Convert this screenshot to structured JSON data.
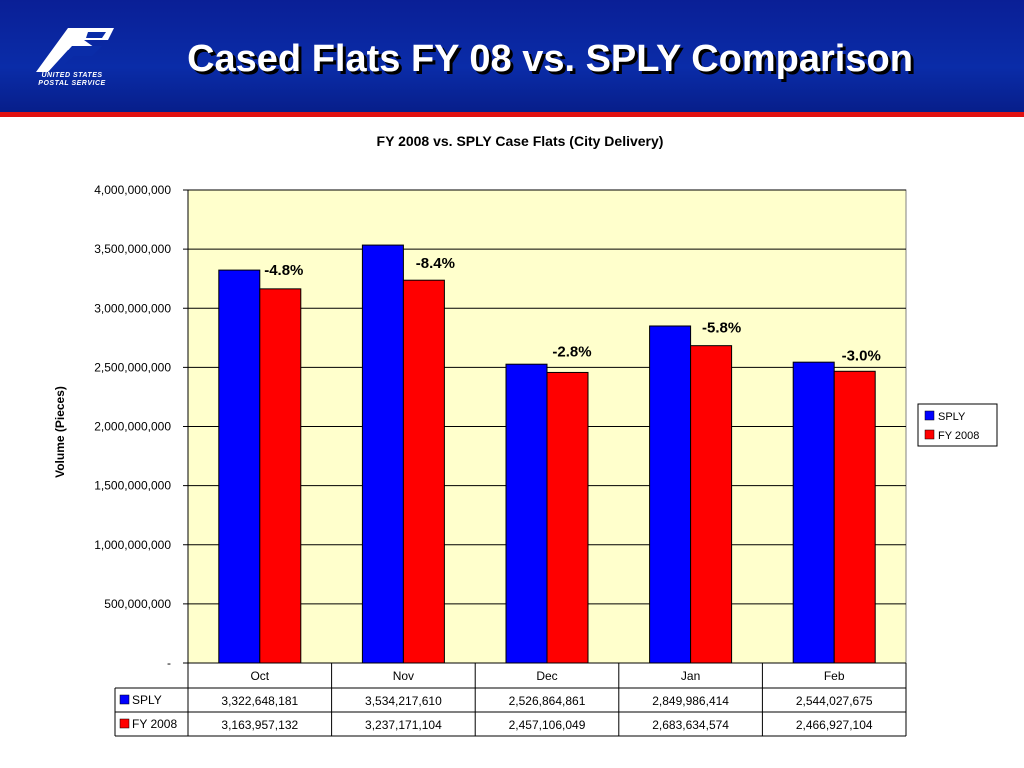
{
  "header": {
    "title": "Cased Flats FY 08 vs. SPLY Comparison",
    "logo_line1": "UNITED STATES",
    "logo_line2": "POSTAL SERVICE"
  },
  "colors": {
    "banner": "#0a2ca8",
    "accent_line": "#e01010",
    "plot_bg": "#ffffcc",
    "sply": "#0000ff",
    "fy2008": "#ff0000"
  },
  "chart_data": {
    "type": "bar",
    "title": "FY 2008 vs. SPLY Case Flats (City Delivery)",
    "ylabel": "Volume (Pieces)",
    "xlabel": "",
    "ylim": [
      0,
      4000000000
    ],
    "yticks": [
      0,
      500000000,
      1000000000,
      1500000000,
      2000000000,
      2500000000,
      3000000000,
      3500000000,
      4000000000
    ],
    "ytick_labels": [
      "-",
      "500,000,000",
      "1,000,000,000",
      "1,500,000,000",
      "2,000,000,000",
      "2,500,000,000",
      "3,000,000,000",
      "3,500,000,000",
      "4,000,000,000"
    ],
    "categories": [
      "Oct",
      "Nov",
      "Dec",
      "Jan",
      "Feb"
    ],
    "series": [
      {
        "name": "SPLY",
        "color": "#0000ff",
        "values": [
          3322648181,
          3534217610,
          2526864861,
          2849986414,
          2544027675
        ],
        "labels": [
          "3,322,648,181",
          "3,534,217,610",
          "2,526,864,861",
          "2,849,986,414",
          "2,544,027,675"
        ]
      },
      {
        "name": "FY 2008",
        "color": "#ff0000",
        "values": [
          3163957132,
          3237171104,
          2457106049,
          2683634574,
          2466927104
        ],
        "labels": [
          "3,163,957,132",
          "3,237,171,104",
          "2,457,106,049",
          "2,683,634,574",
          "2,466,927,104"
        ]
      }
    ],
    "annotations": [
      "-4.8%",
      "-8.4%",
      "-2.8%",
      "-5.8%",
      "-3.0%"
    ],
    "legend": "right",
    "grid": true,
    "data_table": true
  }
}
